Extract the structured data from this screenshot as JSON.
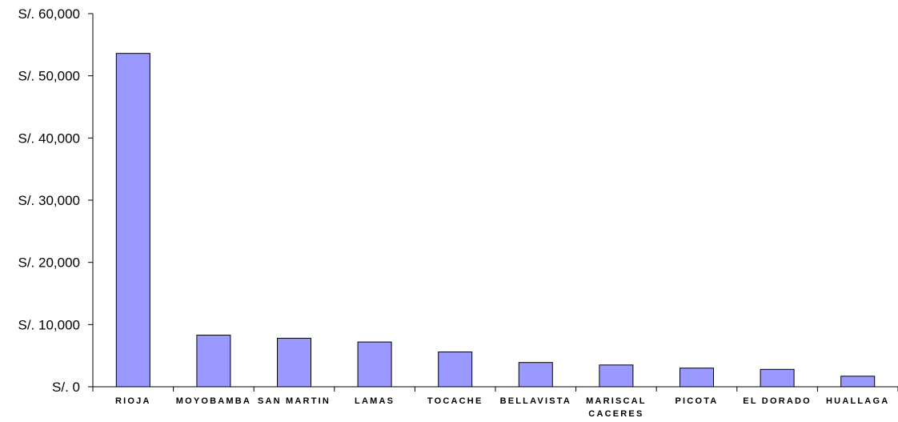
{
  "chart_data": {
    "type": "bar",
    "title": "",
    "xlabel": "",
    "ylabel": "",
    "categories": [
      "RIOJA",
      "MOYOBAMBA",
      "SAN MARTIN",
      "LAMAS",
      "TOCACHE",
      "BELLAVISTA",
      "MARISCAL CACERES",
      "PICOTA",
      "EL DORADO",
      "HUALLAGA"
    ],
    "category_label_lines": [
      [
        "RIOJA"
      ],
      [
        "MOYOBAMBA"
      ],
      [
        "SAN MARTIN"
      ],
      [
        "LAMAS"
      ],
      [
        "TOCACHE"
      ],
      [
        "BELLAVISTA"
      ],
      [
        "MARISCAL",
        "CACERES"
      ],
      [
        "PICOTA"
      ],
      [
        "EL DORADO"
      ],
      [
        "HUALLAGA"
      ]
    ],
    "values": [
      53600,
      8300,
      7800,
      7200,
      5600,
      3900,
      3500,
      3000,
      2800,
      1700
    ],
    "ylim": [
      0,
      60000
    ],
    "yticks": [
      0,
      10000,
      20000,
      30000,
      40000,
      50000,
      60000
    ],
    "ytick_labels": [
      "S/. 0",
      "S/. 10,000",
      "S/. 20,000",
      "S/. 30,000",
      "S/. 40,000",
      "S/. 50,000",
      "S/. 60,000"
    ],
    "grid": false,
    "legend": "none",
    "colors": {
      "bar_fill": "#9999ff",
      "bar_stroke": "#000000",
      "axis": "#000000"
    }
  }
}
